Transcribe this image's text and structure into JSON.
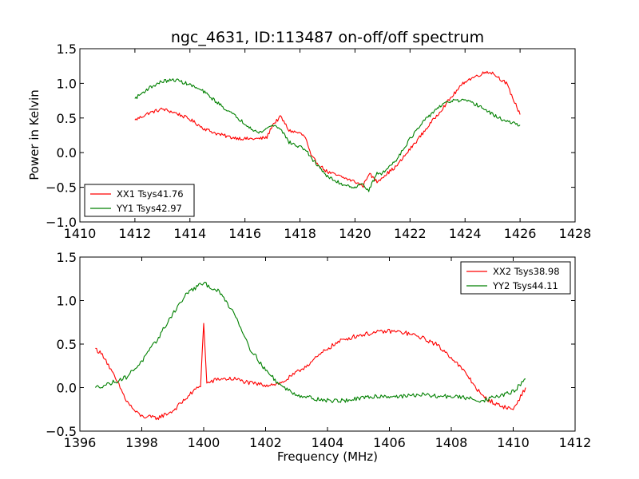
{
  "chart_data": [
    {
      "type": "line",
      "title": "ngc_4631, ID:113487 on-off/off spectrum",
      "xlabel": "",
      "ylabel": "Power in Kelvin",
      "xlim": [
        1410,
        1428
      ],
      "ylim": [
        -1.0,
        1.5
      ],
      "xticks": [
        "1410",
        "1412",
        "1414",
        "1416",
        "1418",
        "1420",
        "1422",
        "1424",
        "1426",
        "1428"
      ],
      "yticks": [
        "−1.0",
        "−0.5",
        "0.0",
        "0.5",
        "1.0",
        "1.5"
      ],
      "legend_position": "lower-left",
      "series": [
        {
          "name": "XX1 Tsys41.76",
          "color": "#ff0000",
          "x": [
            1412.0,
            1412.5,
            1413.0,
            1413.5,
            1414.0,
            1414.5,
            1415.0,
            1415.5,
            1416.0,
            1416.5,
            1416.8,
            1417.0,
            1417.3,
            1417.6,
            1418.0,
            1418.2,
            1418.4,
            1418.7,
            1419.0,
            1419.5,
            1420.0,
            1420.3,
            1420.5,
            1420.8,
            1421.0,
            1421.5,
            1422.0,
            1422.5,
            1423.0,
            1423.5,
            1424.0,
            1424.5,
            1424.8,
            1425.0,
            1425.5,
            1426.0
          ],
          "y": [
            0.47,
            0.57,
            0.63,
            0.57,
            0.48,
            0.35,
            0.27,
            0.22,
            0.2,
            0.2,
            0.22,
            0.4,
            0.52,
            0.32,
            0.28,
            0.22,
            -0.05,
            -0.18,
            -0.28,
            -0.35,
            -0.42,
            -0.48,
            -0.3,
            -0.42,
            -0.35,
            -0.2,
            0.05,
            0.3,
            0.55,
            0.8,
            1.03,
            1.12,
            1.17,
            1.15,
            1.0,
            0.55
          ]
        },
        {
          "name": "YY1 Tsys42.97",
          "color": "#008000",
          "x": [
            1412.0,
            1412.5,
            1413.0,
            1413.5,
            1414.0,
            1414.5,
            1415.0,
            1415.5,
            1416.0,
            1416.5,
            1416.8,
            1417.0,
            1417.3,
            1417.6,
            1418.0,
            1418.2,
            1418.4,
            1418.7,
            1419.0,
            1419.5,
            1420.0,
            1420.3,
            1420.5,
            1420.8,
            1421.0,
            1421.5,
            1422.0,
            1422.5,
            1423.0,
            1423.5,
            1424.0,
            1424.5,
            1425.0,
            1425.5,
            1426.0
          ],
          "y": [
            0.78,
            0.93,
            1.03,
            1.05,
            0.98,
            0.88,
            0.72,
            0.57,
            0.42,
            0.28,
            0.35,
            0.4,
            0.35,
            0.15,
            0.08,
            0.05,
            -0.08,
            -0.2,
            -0.35,
            -0.45,
            -0.5,
            -0.45,
            -0.55,
            -0.3,
            -0.3,
            -0.1,
            0.2,
            0.45,
            0.65,
            0.75,
            0.75,
            0.68,
            0.55,
            0.45,
            0.4
          ]
        }
      ]
    },
    {
      "type": "line",
      "title": "",
      "xlabel": "Frequency (MHz)",
      "ylabel": "",
      "xlim": [
        1396,
        1412
      ],
      "ylim": [
        -0.5,
        1.5
      ],
      "xticks": [
        "1396",
        "1398",
        "1400",
        "1402",
        "1404",
        "1406",
        "1408",
        "1410",
        "1412"
      ],
      "yticks": [
        "−0.5",
        "0.0",
        "0.5",
        "1.0",
        "1.5"
      ],
      "legend_position": "top-right",
      "series": [
        {
          "name": "XX2 Tsys38.98",
          "color": "#ff0000",
          "x": [
            1396.5,
            1396.8,
            1397.0,
            1397.3,
            1397.5,
            1397.8,
            1398.0,
            1398.5,
            1399.0,
            1399.5,
            1399.9,
            1400.0,
            1400.1,
            1400.5,
            1401.0,
            1401.5,
            1402.0,
            1402.5,
            1403.0,
            1403.5,
            1404.0,
            1404.5,
            1405.0,
            1405.5,
            1406.0,
            1406.5,
            1407.0,
            1407.5,
            1408.0,
            1408.5,
            1409.0,
            1409.5,
            1410.0,
            1410.4
          ],
          "y": [
            0.45,
            0.35,
            0.2,
            0.0,
            -0.15,
            -0.28,
            -0.33,
            -0.35,
            -0.27,
            -0.1,
            0.03,
            0.75,
            0.05,
            0.1,
            0.1,
            0.05,
            0.03,
            0.05,
            0.17,
            0.3,
            0.45,
            0.55,
            0.6,
            0.63,
            0.65,
            0.63,
            0.58,
            0.5,
            0.35,
            0.15,
            -0.1,
            -0.2,
            -0.25,
            0.0
          ]
        },
        {
          "name": "YY2 Tsys44.11",
          "color": "#008000",
          "x": [
            1396.5,
            1397.0,
            1397.5,
            1398.0,
            1398.5,
            1399.0,
            1399.5,
            1400.0,
            1400.5,
            1401.0,
            1401.5,
            1402.0,
            1402.5,
            1403.0,
            1403.5,
            1404.0,
            1404.5,
            1405.0,
            1405.5,
            1406.0,
            1406.5,
            1407.0,
            1407.5,
            1408.0,
            1408.5,
            1409.0,
            1409.5,
            1410.0,
            1410.4
          ],
          "y": [
            0.0,
            0.05,
            0.12,
            0.3,
            0.55,
            0.85,
            1.1,
            1.2,
            1.1,
            0.85,
            0.45,
            0.2,
            0.02,
            -0.08,
            -0.12,
            -0.15,
            -0.15,
            -0.13,
            -0.1,
            -0.1,
            -0.1,
            -0.08,
            -0.1,
            -0.1,
            -0.12,
            -0.15,
            -0.1,
            -0.05,
            0.1
          ]
        }
      ]
    }
  ]
}
